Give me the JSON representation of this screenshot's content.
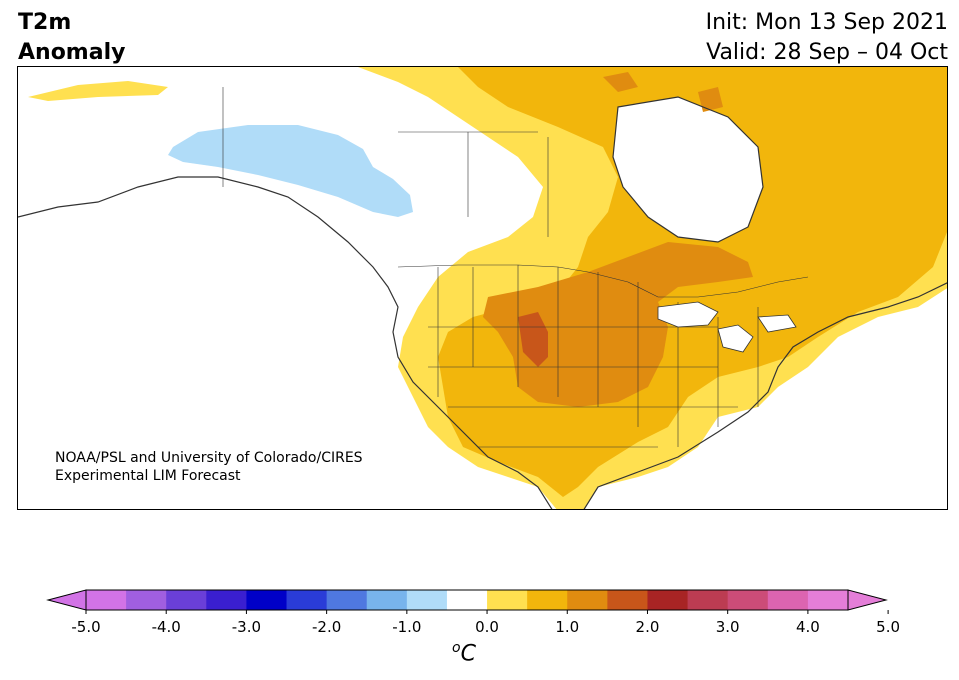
{
  "title": {
    "left_line1": "T2m",
    "left_line2": "Anomaly",
    "right_line1": "Init: Mon 13 Sep 2021",
    "right_line2": "Valid: 28 Sep – 04 Oct"
  },
  "credit": {
    "line1": "NOAA/PSL and University of Colorado/CIRES",
    "line2": "Experimental LIM Forecast"
  },
  "colorbar": {
    "units_base": "C",
    "units_sup": "o",
    "tick_labels": [
      "-5.0",
      "-4.0",
      "-3.0",
      "-2.0",
      "-1.0",
      "0.0",
      "1.0",
      "2.0",
      "3.0",
      "4.0",
      "5.0"
    ],
    "levels": [
      -5.0,
      -4.5,
      -4.0,
      -3.5,
      -3.0,
      -2.5,
      -2.0,
      -1.5,
      -1.0,
      -0.5,
      0.5,
      1.0,
      1.5,
      2.0,
      2.5,
      3.0,
      3.5,
      4.0,
      4.5,
      5.0
    ],
    "colors": [
      "#d273e6",
      "#a05fe0",
      "#6a3fd8",
      "#3a1fd0",
      "#0000c8",
      "#2a3cd8",
      "#4f78e0",
      "#78b4ec",
      "#b0dcf8",
      "#ffffff",
      "#ffe050",
      "#f2b60c",
      "#e08c10",
      "#c8561a",
      "#a82424",
      "#bc3c52",
      "#cc4c78",
      "#dc64b0",
      "#e47ed8"
    ],
    "extend_low_color": "#d273e6",
    "extend_high_color": "#e47ed8"
  },
  "map": {
    "region": "North America",
    "colors": {
      "ocean": "#ffffff",
      "cold_anomaly": "#b0dcf8",
      "warm_1": "#ffe050",
      "warm_2": "#f2b60c",
      "warm_3": "#e08c10",
      "warm_4": "#c8561a",
      "boundary": "#333333"
    }
  }
}
